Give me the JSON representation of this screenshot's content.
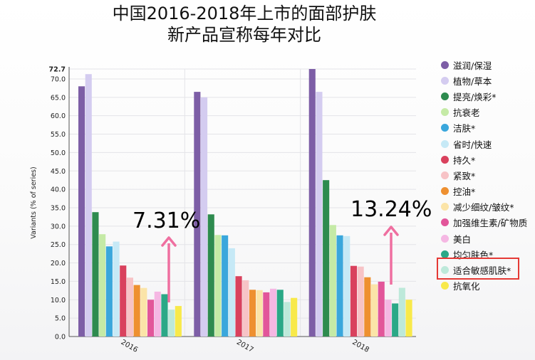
{
  "title": {
    "line1": "中国2016-2018年上市的面部护肤",
    "line2": "新产品宣称每年对比"
  },
  "annotations": {
    "2016_value": "7.31%",
    "2018_value": "13.24%",
    "arrow_color": "#ef6fa0",
    "highlight_color": "#e53935"
  },
  "chart_data": {
    "type": "bar",
    "title": "中国2016-2018年上市的面部护肤新产品宣称每年对比",
    "xlabel": "",
    "ylabel": "Variants (% of series)",
    "ylim": [
      0,
      72.7
    ],
    "yticks": [
      "0.0",
      "5.0",
      "10.0",
      "15.0",
      "20.0",
      "25.0",
      "30.0",
      "35.0",
      "40.0",
      "45.0",
      "50.0",
      "55.0",
      "60.0",
      "65.0",
      "70.0",
      "72.7"
    ],
    "categories": [
      "2016",
      "2017",
      "2018"
    ],
    "grid": true,
    "legend_position": "right",
    "series": [
      {
        "name": "滋润/保湿",
        "color": "#7d5ea6",
        "values": [
          68.0,
          66.5,
          72.7
        ]
      },
      {
        "name": "植物/草本",
        "color": "#d4ccf0",
        "values": [
          71.3,
          65.0,
          66.5
        ]
      },
      {
        "name": "提亮/焕彩*",
        "color": "#2e8b4f",
        "values": [
          33.8,
          33.2,
          42.5
        ]
      },
      {
        "name": "抗衰老",
        "color": "#c5eaa6",
        "values": [
          27.8,
          27.6,
          30.3
        ]
      },
      {
        "name": "洁肤*",
        "color": "#3aa7dc",
        "values": [
          24.5,
          27.5,
          27.5
        ]
      },
      {
        "name": "省时/快速",
        "color": "#c6e9f6",
        "values": [
          25.8,
          24.0,
          27.3
        ]
      },
      {
        "name": "持久*",
        "color": "#d9415d",
        "values": [
          19.3,
          16.4,
          19.2
        ]
      },
      {
        "name": "紧致*",
        "color": "#f7c3c6",
        "values": [
          16.0,
          15.3,
          19.0
        ]
      },
      {
        "name": "控油*",
        "color": "#ee9030",
        "values": [
          14.0,
          12.7,
          16.1
        ]
      },
      {
        "name": "减少细纹/皱纹*",
        "color": "#fbe4a8",
        "values": [
          13.2,
          12.6,
          14.2
        ]
      },
      {
        "name": "加强维生素/矿物质",
        "color": "#e2569a",
        "values": [
          10.0,
          12.0,
          14.9
        ]
      },
      {
        "name": "美白",
        "color": "#f5b7e3",
        "values": [
          12.2,
          13.0,
          10.0
        ]
      },
      {
        "name": "均匀肤色*",
        "color": "#2ba887",
        "values": [
          11.5,
          12.7,
          9.0
        ]
      },
      {
        "name": "适合敏感肌肤*",
        "color": "#bde9da",
        "values": [
          7.31,
          9.4,
          13.24
        ]
      },
      {
        "name": "抗氧化",
        "color": "#f8e94a",
        "values": [
          8.3,
          10.5,
          10.0
        ]
      }
    ]
  }
}
